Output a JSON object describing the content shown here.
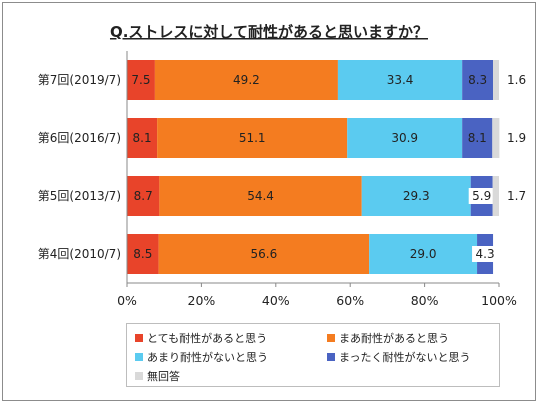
{
  "chart_data": {
    "type": "bar",
    "orientation": "horizontal",
    "stacked": "percent",
    "title": "Q.ストレスに対して耐性があると思いますか？",
    "categories": [
      "第7回(2019/7)",
      "第6回(2016/7)",
      "第5回(2013/7)",
      "第4回(2010/7)"
    ],
    "series": [
      {
        "name": "とても耐性があると思う",
        "color": "#e8442a",
        "values": [
          7.5,
          8.1,
          8.7,
          8.5
        ]
      },
      {
        "name": "まあ耐性があると思う",
        "color": "#f47c20",
        "values": [
          49.2,
          51.1,
          54.4,
          56.6
        ]
      },
      {
        "name": "あまり耐性がないと思う",
        "color": "#5bcbf0",
        "values": [
          33.4,
          30.9,
          29.3,
          29.0
        ]
      },
      {
        "name": "まったく耐性がないと思う",
        "color": "#4a63c2",
        "values": [
          8.3,
          8.1,
          5.9,
          4.3
        ]
      },
      {
        "name": "無回答",
        "color": "#d9d9d9",
        "values": [
          1.6,
          1.9,
          1.7,
          null
        ]
      }
    ],
    "x_ticks": [
      "0%",
      "20%",
      "40%",
      "60%",
      "80%",
      "100%"
    ],
    "xlim": [
      0,
      100
    ],
    "grid": false,
    "legend_position": "bottom"
  }
}
